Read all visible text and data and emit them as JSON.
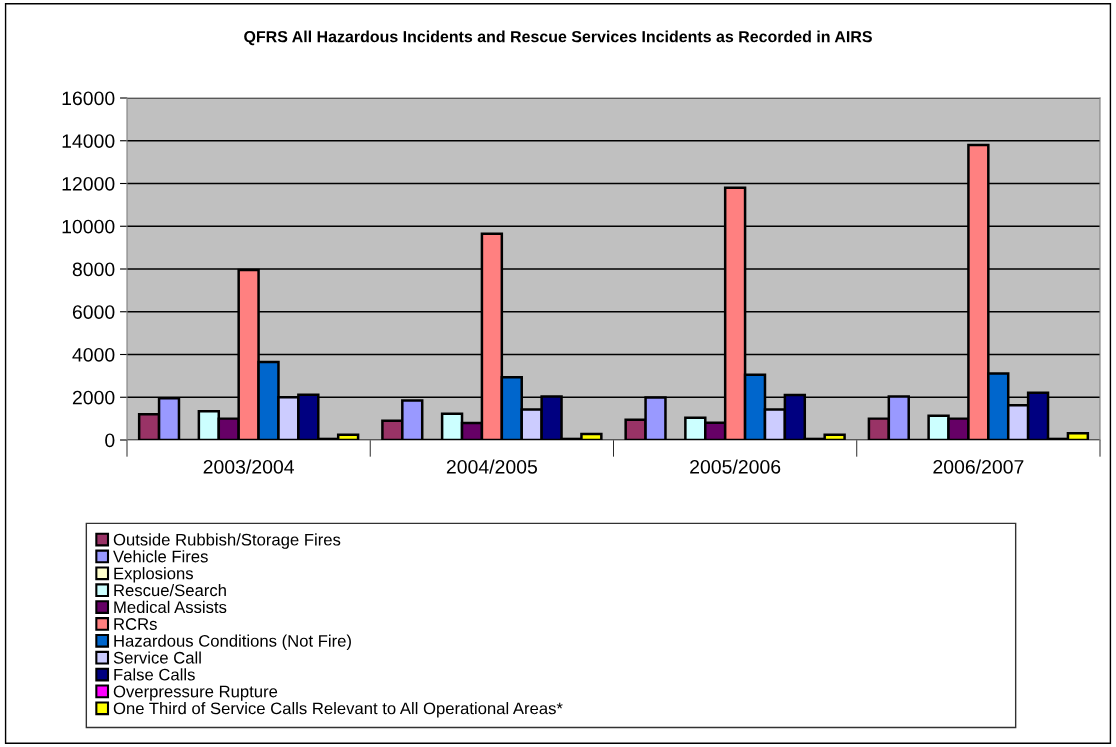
{
  "chart_data": {
    "type": "bar",
    "title": "QFRS All Hazardous Incidents and Rescue Services Incidents as Recorded in AIRS",
    "categories": [
      "2003/2004",
      "2004/2005",
      "2005/2006",
      "2006/2007"
    ],
    "series": [
      {
        "name": "Outside Rubbish/Storage Fires",
        "color": "#993366",
        "values": [
          1200,
          900,
          950,
          1000
        ]
      },
      {
        "name": "Vehicle Fires",
        "color": "#9999ff",
        "values": [
          1950,
          1850,
          1990,
          2040
        ]
      },
      {
        "name": "Explosions",
        "color": "#ffffcc",
        "values": [
          null,
          null,
          null,
          null
        ]
      },
      {
        "name": "Rescue/Search",
        "color": "#ccffff",
        "values": [
          1350,
          1230,
          1040,
          1140
        ]
      },
      {
        "name": "Medical Assists",
        "color": "#660066",
        "values": [
          1000,
          790,
          810,
          1000
        ]
      },
      {
        "name": "RCRs",
        "color": "#ff8080",
        "values": [
          7950,
          9650,
          11800,
          13800
        ]
      },
      {
        "name": "Hazardous Conditions (Not Fire)",
        "color": "#0066cc",
        "values": [
          3650,
          2930,
          3050,
          3110
        ]
      },
      {
        "name": "Service Call",
        "color": "#ccccff",
        "values": [
          2000,
          1430,
          1430,
          1620
        ]
      },
      {
        "name": "False Calls",
        "color": "#000080",
        "values": [
          2120,
          2040,
          2100,
          2210
        ]
      },
      {
        "name": "Overpressure Rupture",
        "color": "#ff00ff",
        "values": [
          50,
          50,
          50,
          50
        ]
      },
      {
        "name": "One Third of Service Calls Relevant to All Operational Areas*",
        "color": "#ffff00",
        "values": [
          250,
          280,
          250,
          310
        ]
      }
    ],
    "ylim": [
      0,
      16000
    ],
    "yticks": [
      0,
      2000,
      4000,
      6000,
      8000,
      10000,
      12000,
      14000,
      16000
    ],
    "grid": "y",
    "legend": "bottom"
  }
}
